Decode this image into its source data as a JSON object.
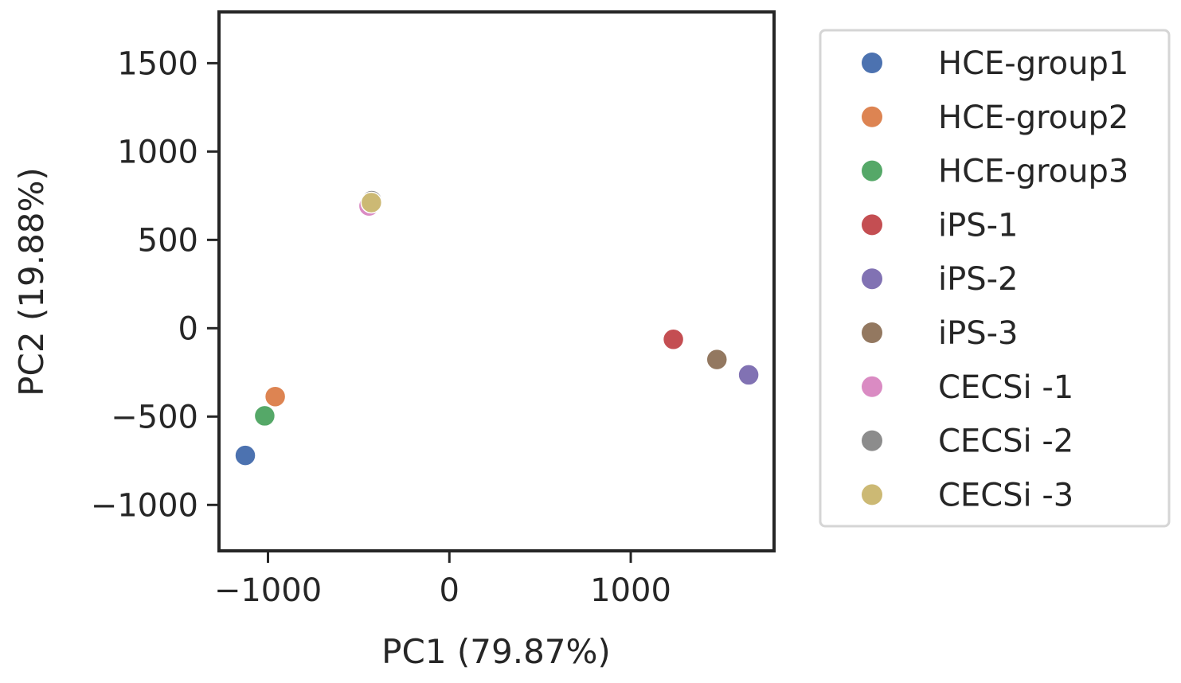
{
  "chart_data": {
    "type": "scatter",
    "xlabel": "PC1 (79.87%)",
    "ylabel": "PC2 (19.88%)",
    "xlim": [
      -1270,
      1790
    ],
    "ylim": [
      -1260,
      1790
    ],
    "xticks": [
      {
        "value": -1000,
        "label": "−1000"
      },
      {
        "value": 0,
        "label": "0"
      },
      {
        "value": 1000,
        "label": "1000"
      }
    ],
    "yticks": [
      {
        "value": -1000,
        "label": "−1000"
      },
      {
        "value": -500,
        "label": "−500"
      },
      {
        "value": 0,
        "label": "0"
      },
      {
        "value": 500,
        "label": "500"
      },
      {
        "value": 1000,
        "label": "1000"
      },
      {
        "value": 1500,
        "label": "1500"
      }
    ],
    "grid": false,
    "legend_position": "outside-right",
    "series": [
      {
        "name": "HCE-group1",
        "color": "#4c72b0",
        "x": -1125,
        "y": -720
      },
      {
        "name": "HCE-group2",
        "color": "#dd8452",
        "x": -960,
        "y": -387
      },
      {
        "name": "HCE-group3",
        "color": "#55a868",
        "x": -1018,
        "y": -496
      },
      {
        "name": "iPS-1",
        "color": "#c44e52",
        "x": 1235,
        "y": -63
      },
      {
        "name": "iPS-2",
        "color": "#8172b3",
        "x": 1650,
        "y": -264
      },
      {
        "name": "iPS-3",
        "color": "#937860",
        "x": 1475,
        "y": -177
      },
      {
        "name": "CECSi -1",
        "color": "#da8bc3",
        "x": -443,
        "y": 692
      },
      {
        "name": "CECSi -2",
        "color": "#8c8c8c",
        "x": -428,
        "y": 722
      },
      {
        "name": "CECSi -3",
        "color": "#ccb974",
        "x": -430,
        "y": 711
      }
    ]
  }
}
